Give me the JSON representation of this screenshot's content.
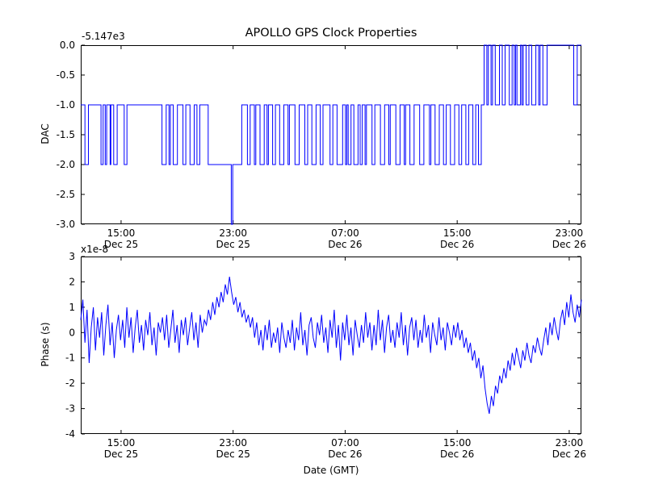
{
  "chart_data": [
    {
      "type": "line",
      "name": "dac",
      "title": "APOLLO GPS Clock Properties",
      "ylabel": "DAC",
      "offset_label": "-5.147e3",
      "color": "#0000ff",
      "ylim": [
        -3.0,
        0.0
      ],
      "yticks": [
        {
          "v": 0.0,
          "label": "0.0"
        },
        {
          "v": -0.5,
          "label": "-0.5"
        },
        {
          "v": -1.0,
          "label": "-1.0"
        },
        {
          "v": -1.5,
          "label": "-1.5"
        },
        {
          "v": -2.0,
          "label": "-2.0"
        },
        {
          "v": -2.5,
          "label": "-2.5"
        },
        {
          "v": -3.0,
          "label": "-3.0"
        }
      ],
      "xlim": [
        0,
        35.75
      ],
      "xticks": [
        {
          "t": 2.88,
          "line1": "15:00",
          "line2": "Dec 25"
        },
        {
          "t": 10.88,
          "line1": "23:00",
          "line2": "Dec 25"
        },
        {
          "t": 18.88,
          "line1": "07:00",
          "line2": "Dec 26"
        },
        {
          "t": 26.88,
          "line1": "15:00",
          "line2": "Dec 26"
        },
        {
          "t": 34.88,
          "line1": "23:00",
          "line2": "Dec 26"
        }
      ],
      "steps": [
        [
          0.0,
          -1
        ],
        [
          0.3,
          -2
        ],
        [
          0.55,
          -1
        ],
        [
          1.45,
          -2
        ],
        [
          1.6,
          -1
        ],
        [
          1.75,
          -2
        ],
        [
          1.85,
          -1
        ],
        [
          2.1,
          -2
        ],
        [
          2.15,
          -1
        ],
        [
          2.35,
          -2
        ],
        [
          2.6,
          -1
        ],
        [
          3.1,
          -2
        ],
        [
          3.3,
          -1
        ],
        [
          5.8,
          -2
        ],
        [
          6.1,
          -1
        ],
        [
          6.3,
          -2
        ],
        [
          6.4,
          -1
        ],
        [
          6.6,
          -2
        ],
        [
          6.9,
          -1
        ],
        [
          7.3,
          -2
        ],
        [
          7.5,
          -1
        ],
        [
          7.8,
          -2
        ],
        [
          8.1,
          -1
        ],
        [
          8.3,
          -2
        ],
        [
          8.5,
          -1
        ],
        [
          9.1,
          -2
        ],
        [
          10.75,
          -3
        ],
        [
          10.85,
          -2
        ],
        [
          11.5,
          -1
        ],
        [
          11.9,
          -2
        ],
        [
          12.1,
          -1
        ],
        [
          12.4,
          -2
        ],
        [
          12.5,
          -1
        ],
        [
          12.8,
          -2
        ],
        [
          13.1,
          -1
        ],
        [
          13.3,
          -2
        ],
        [
          13.4,
          -1
        ],
        [
          13.7,
          -2
        ],
        [
          13.9,
          -1
        ],
        [
          14.2,
          -2
        ],
        [
          14.5,
          -1
        ],
        [
          14.8,
          -2
        ],
        [
          14.9,
          -1
        ],
        [
          15.3,
          -2
        ],
        [
          15.6,
          -1
        ],
        [
          16.0,
          -2
        ],
        [
          16.2,
          -1
        ],
        [
          16.5,
          -2
        ],
        [
          16.8,
          -1
        ],
        [
          17.1,
          -2
        ],
        [
          17.3,
          -1
        ],
        [
          17.8,
          -2
        ],
        [
          18.0,
          -1
        ],
        [
          18.3,
          -2
        ],
        [
          18.7,
          -1
        ],
        [
          18.9,
          -2
        ],
        [
          19.0,
          -1
        ],
        [
          19.1,
          -2
        ],
        [
          19.3,
          -1
        ],
        [
          19.5,
          -2
        ],
        [
          19.8,
          -1
        ],
        [
          19.95,
          -2
        ],
        [
          20.1,
          -1
        ],
        [
          20.3,
          -2
        ],
        [
          20.4,
          -1
        ],
        [
          20.8,
          -2
        ],
        [
          21.0,
          -1
        ],
        [
          21.4,
          -2
        ],
        [
          21.7,
          -1
        ],
        [
          22.0,
          -2
        ],
        [
          22.1,
          -1
        ],
        [
          22.5,
          -2
        ],
        [
          22.8,
          -1
        ],
        [
          23.1,
          -2
        ],
        [
          23.2,
          -1
        ],
        [
          23.5,
          -2
        ],
        [
          23.8,
          -1
        ],
        [
          24.2,
          -2
        ],
        [
          24.5,
          -1
        ],
        [
          24.9,
          -2
        ],
        [
          25.0,
          -1
        ],
        [
          25.3,
          -2
        ],
        [
          25.6,
          -1
        ],
        [
          25.9,
          -2
        ],
        [
          26.1,
          -1
        ],
        [
          26.4,
          -2
        ],
        [
          26.7,
          -1
        ],
        [
          27.0,
          -2
        ],
        [
          27.2,
          -1
        ],
        [
          27.5,
          -2
        ],
        [
          27.7,
          -1
        ],
        [
          28.0,
          -2
        ],
        [
          28.2,
          -1
        ],
        [
          28.4,
          -2
        ],
        [
          28.6,
          -1
        ],
        [
          28.8,
          0
        ],
        [
          29.0,
          -1
        ],
        [
          29.1,
          0
        ],
        [
          29.3,
          -1
        ],
        [
          29.4,
          0
        ],
        [
          29.6,
          -1
        ],
        [
          29.9,
          0
        ],
        [
          30.1,
          -1
        ],
        [
          30.3,
          0
        ],
        [
          30.6,
          -1
        ],
        [
          30.8,
          0
        ],
        [
          30.95,
          -1
        ],
        [
          31.05,
          0
        ],
        [
          31.15,
          -1
        ],
        [
          31.4,
          0
        ],
        [
          31.5,
          -1
        ],
        [
          31.6,
          0
        ],
        [
          31.8,
          -1
        ],
        [
          32.0,
          0
        ],
        [
          32.2,
          -1
        ],
        [
          32.5,
          0
        ],
        [
          32.7,
          -1
        ],
        [
          32.8,
          0
        ],
        [
          33.0,
          -1
        ],
        [
          33.3,
          0
        ],
        [
          35.2,
          -1
        ],
        [
          35.45,
          0
        ]
      ]
    },
    {
      "type": "line",
      "name": "phase",
      "ylabel": "Phase (s)",
      "scale_label": "x1e-8",
      "xlabel": "Date (GMT)",
      "color": "#0000ff",
      "ylim": [
        -4,
        3
      ],
      "yticks": [
        {
          "v": 3,
          "label": "3"
        },
        {
          "v": 2,
          "label": "2"
        },
        {
          "v": 1,
          "label": "1"
        },
        {
          "v": 0,
          "label": "0"
        },
        {
          "v": -1,
          "label": "-1"
        },
        {
          "v": -2,
          "label": "-2"
        },
        {
          "v": -3,
          "label": "-3"
        },
        {
          "v": -4,
          "label": "-4"
        }
      ],
      "xlim": [
        0,
        35.75
      ],
      "xticks": [
        {
          "t": 2.88,
          "line1": "15:00",
          "line2": "Dec 25"
        },
        {
          "t": 10.88,
          "line1": "23:00",
          "line2": "Dec 25"
        },
        {
          "t": 18.88,
          "line1": "07:00",
          "line2": "Dec 26"
        },
        {
          "t": 26.88,
          "line1": "15:00",
          "line2": "Dec 26"
        },
        {
          "t": 34.88,
          "line1": "23:00",
          "line2": "Dec 26"
        }
      ],
      "values_unit": "1e-8 s, uniform sampling over xlim",
      "values": [
        0.5,
        1.3,
        -0.4,
        0.9,
        -1.2,
        0.2,
        1.0,
        -0.7,
        0.6,
        -0.2,
        0.8,
        -0.9,
        0.3,
        1.1,
        -0.5,
        0.4,
        -1.0,
        0.1,
        0.7,
        -0.3,
        0.5,
        -0.6,
        1.0,
        -0.2,
        0.6,
        -0.8,
        0.2,
        0.9,
        -0.4,
        0.3,
        -0.7,
        0.5,
        -0.1,
        0.8,
        -0.5,
        0.2,
        -0.9,
        0.4,
        0.0,
        0.6,
        -0.3,
        0.7,
        -0.6,
        0.1,
        0.9,
        -0.4,
        0.3,
        -0.8,
        0.5,
        -0.1,
        0.6,
        -0.5,
        0.2,
        0.8,
        -0.3,
        0.4,
        -0.6,
        0.7,
        0.0,
        0.5,
        0.3,
        0.9,
        0.5,
        1.2,
        0.7,
        1.4,
        1.0,
        1.6,
        1.2,
        1.9,
        1.5,
        2.2,
        1.6,
        1.1,
        1.4,
        0.8,
        1.2,
        0.6,
        0.9,
        0.4,
        0.7,
        0.2,
        0.6,
        -0.2,
        0.4,
        -0.5,
        0.1,
        -0.7,
        0.3,
        -0.3,
        0.5,
        -0.6,
        0.0,
        -0.4,
        0.2,
        -0.8,
        0.4,
        -0.2,
        -0.6,
        0.1,
        -0.4,
        0.5,
        -0.7,
        0.2,
        -0.3,
        0.8,
        -0.5,
        0.1,
        -0.9,
        0.3,
        0.6,
        -0.2,
        -0.6,
        0.4,
        -0.1,
        0.7,
        -0.4,
        0.2,
        -0.8,
        0.5,
        -0.2,
        0.9,
        -0.6,
        0.3,
        -1.1,
        0.4,
        -0.3,
        0.7,
        -0.5,
        0.2,
        -0.9,
        0.5,
        -0.1,
        -0.6,
        0.3,
        -0.4,
        0.8,
        -0.2,
        0.4,
        -0.7,
        0.3,
        -0.5,
        0.9,
        -0.3,
        0.5,
        -0.8,
        0.2,
        0.7,
        -0.4,
        0.1,
        -0.6,
        0.4,
        -0.2,
        0.8,
        -0.5,
        0.3,
        -0.9,
        0.2,
        0.6,
        -0.3,
        0.5,
        -0.6,
        0.1,
        -0.4,
        0.7,
        -0.2,
        0.3,
        -0.8,
        0.4,
        -0.1,
        -0.5,
        0.6,
        -0.3,
        0.2,
        -0.7,
        0.4,
        0.0,
        -0.5,
        0.3,
        -0.2,
        0.4,
        -0.3,
        0.1,
        -0.6,
        -0.2,
        -0.8,
        -0.4,
        -1.1,
        -0.7,
        -1.4,
        -1.0,
        -1.8,
        -1.3,
        -2.2,
        -2.8,
        -3.2,
        -2.5,
        -2.9,
        -2.1,
        -2.4,
        -1.7,
        -2.0,
        -1.4,
        -1.8,
        -1.1,
        -1.5,
        -0.8,
        -1.3,
        -0.6,
        -1.0,
        -1.4,
        -0.7,
        -1.1,
        -0.4,
        -0.9,
        -1.2,
        -0.5,
        -0.8,
        -0.2,
        -0.6,
        -0.9,
        -0.3,
        0.2,
        -0.5,
        0.4,
        -0.1,
        0.6,
        0.1,
        -0.3,
        0.5,
        0.9,
        0.3,
        1.2,
        0.6,
        1.5,
        0.8,
        0.4,
        1.1,
        0.6,
        1.3
      ]
    }
  ]
}
